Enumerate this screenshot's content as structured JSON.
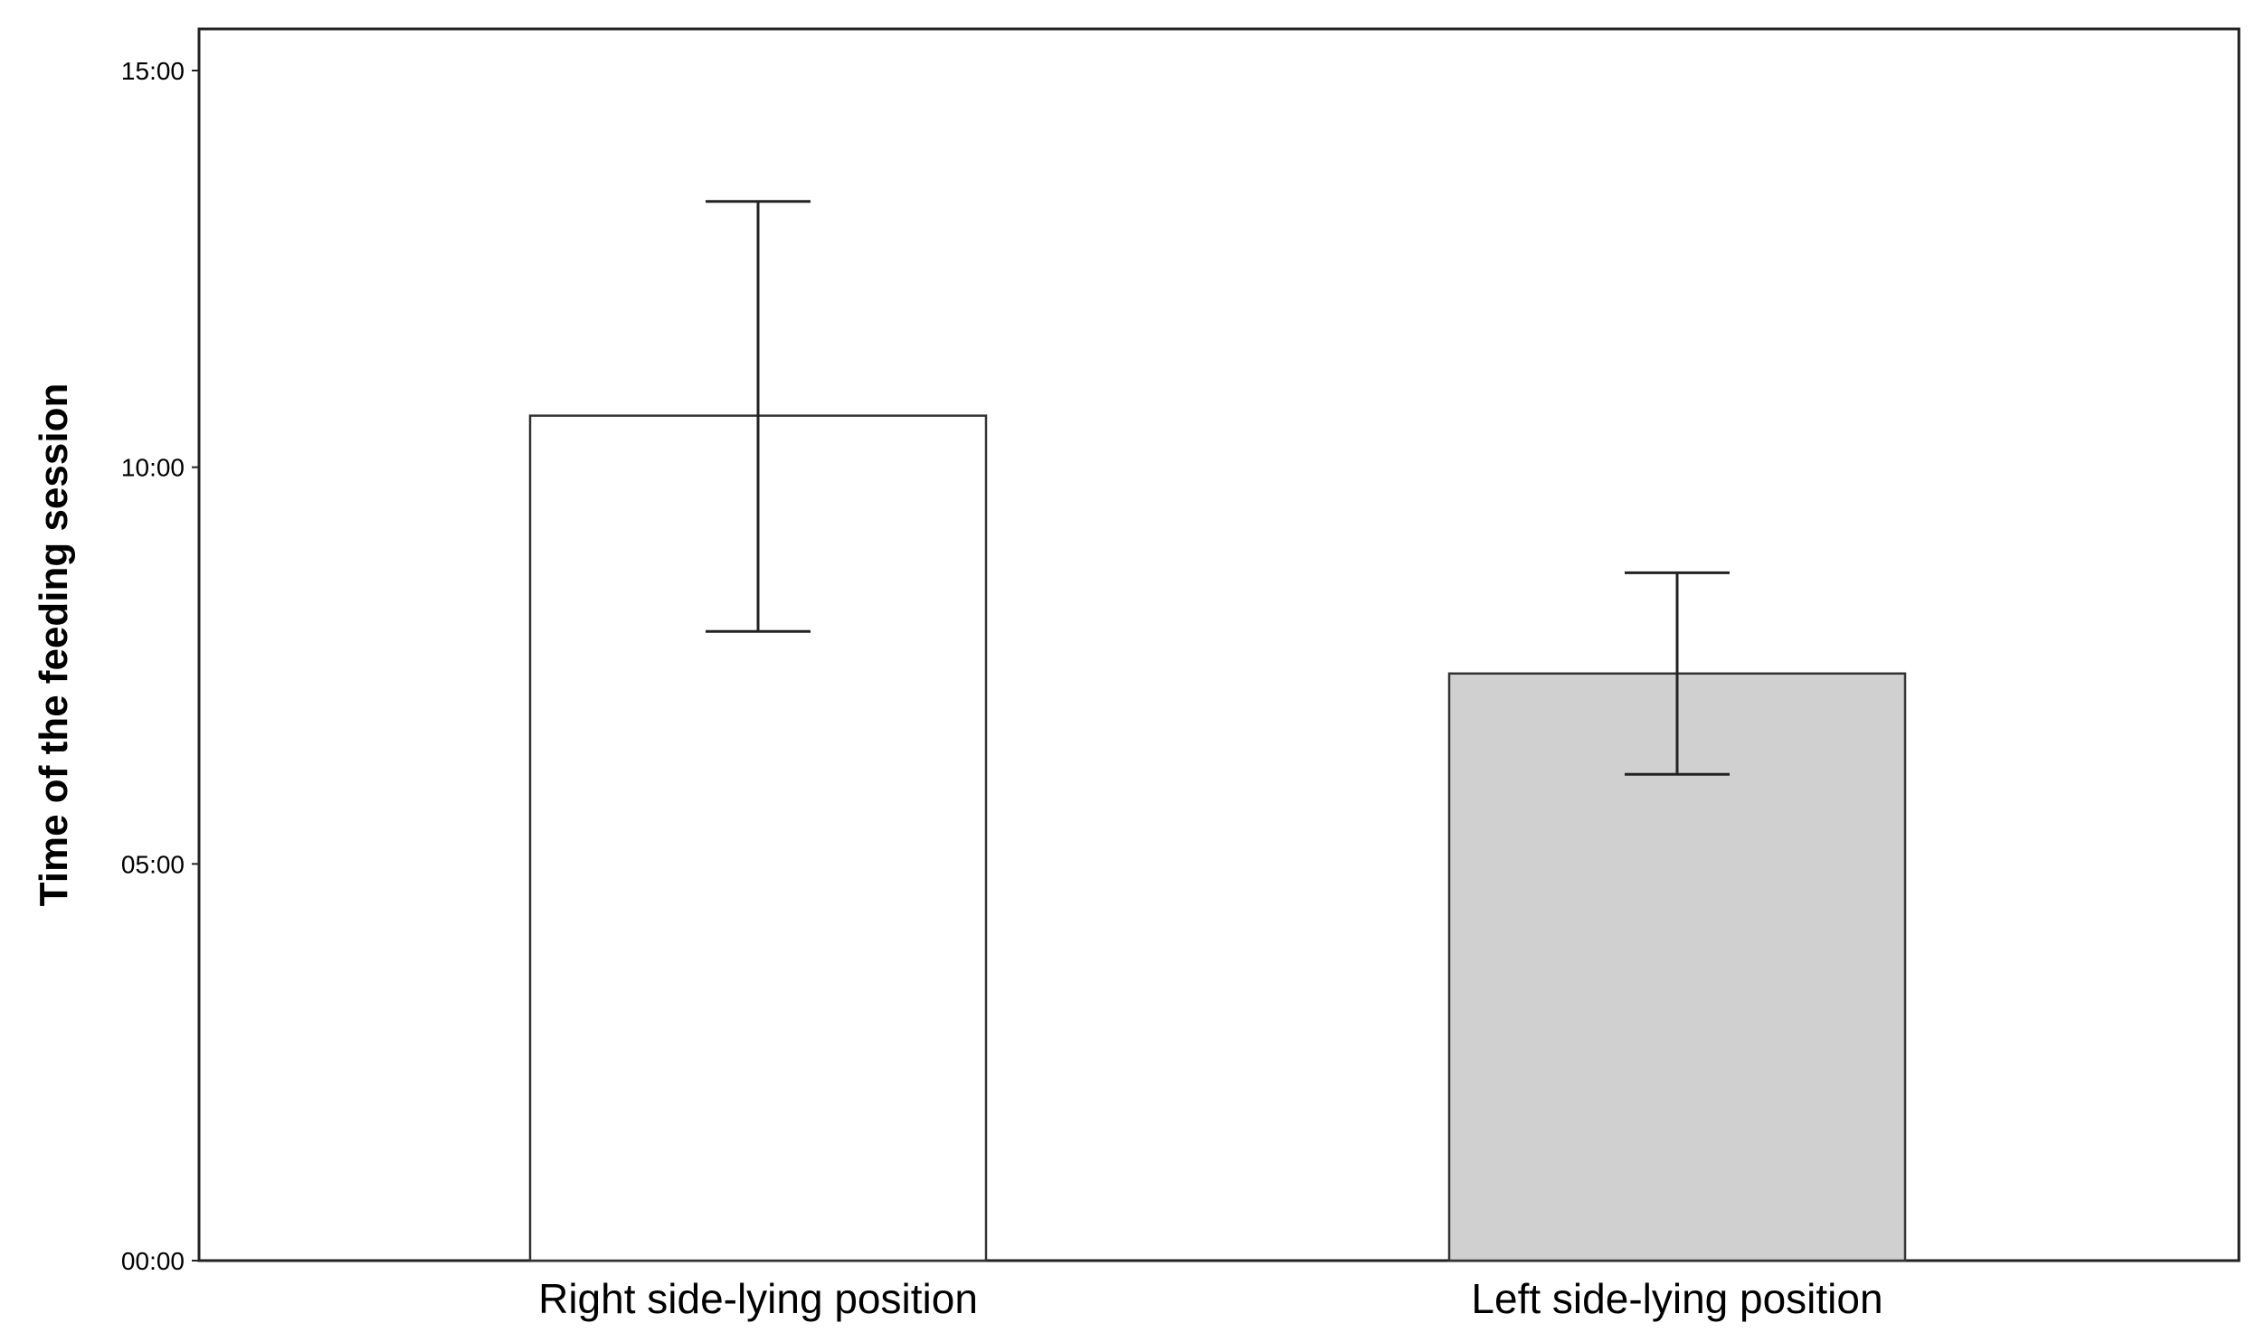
{
  "chart_data": {
    "type": "bar",
    "title": "",
    "xlabel": "",
    "ylabel": "Time of the feeding session",
    "y_unit": "mm:ss",
    "ylim": [
      0,
      15.5
    ],
    "yticks": [
      {
        "value": 0,
        "label": "00:00"
      },
      {
        "value": 5,
        "label": "05:00"
      },
      {
        "value": 10,
        "label": "10:00"
      },
      {
        "value": 15,
        "label": "15:00"
      }
    ],
    "grid": false,
    "legend": "none",
    "categories": [
      "Right side-lying position",
      "Left side-lying position"
    ],
    "values": [
      10.65,
      7.4
    ],
    "error_bars": [
      {
        "low": 7.93,
        "high": 13.35
      },
      {
        "low": 6.13,
        "high": 8.67
      }
    ],
    "colors": [
      "#ffffff",
      "#d0d0d0"
    ],
    "bar_edge_color": "#333333",
    "frame_color": "#222222"
  }
}
